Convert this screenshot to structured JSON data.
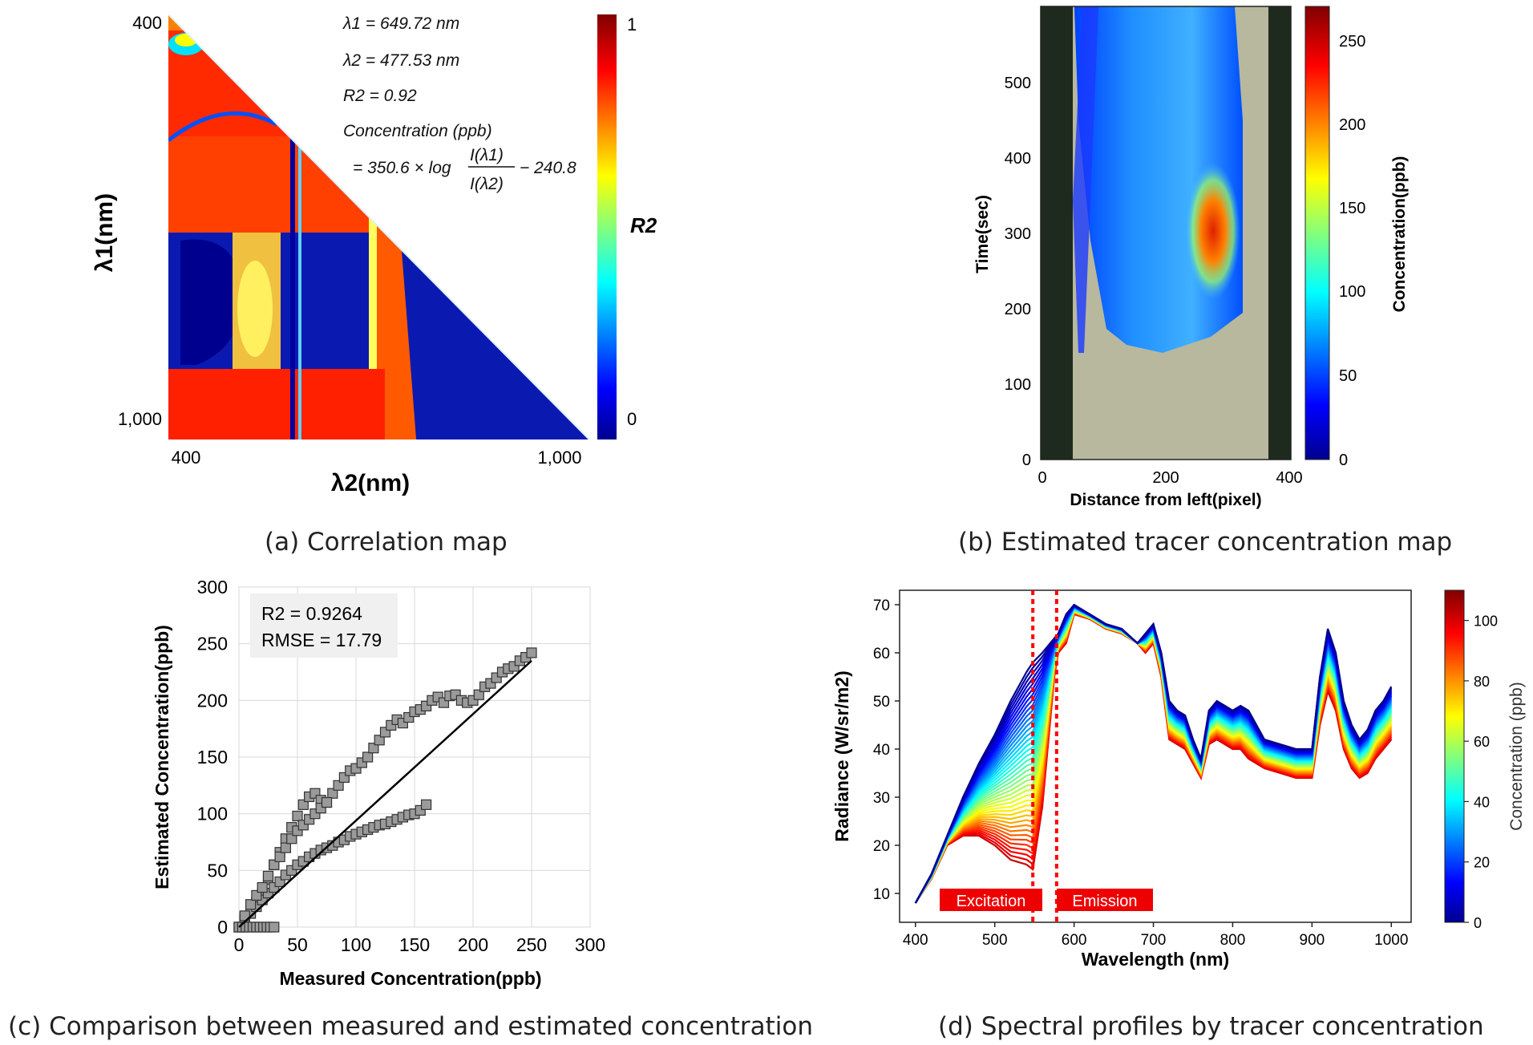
{
  "captions": {
    "a": "(a) Correlation map",
    "b": "(b) Estimated tracer concentration map",
    "c": "(c) Comparison between measured and estimated concentration",
    "d": "(d) Spectral profiles by tracer concentration"
  },
  "chart_data": [
    {
      "id": "a",
      "type": "heatmap",
      "xlabel": "λ2(nm)",
      "ylabel": "λ1(nm)",
      "x_ticks": [
        "400",
        "1,000"
      ],
      "y_ticks": [
        "400",
        "1,000"
      ],
      "xlim": [
        400,
        1000
      ],
      "ylim": [
        400,
        1000
      ],
      "colorbar": {
        "label": "R2",
        "ticks": [
          "1",
          "0"
        ],
        "range": [
          0,
          1
        ]
      },
      "annotations": {
        "lambda1": "λ1 = 649.72 nm",
        "lambda2": "λ2 = 477.53 nm",
        "r2": "R2 = 0.92",
        "eq_line1": "Concentration (ppb)",
        "eq_line2_prefix": "= 350.6 × log",
        "eq_num": "I(λ1)",
        "eq_den": "I(λ2)",
        "eq_suffix": "− 240.8"
      },
      "colors": [
        "#00008f",
        "#0000ff",
        "#00ffff",
        "#ffff00",
        "#ff0000",
        "#800000"
      ]
    },
    {
      "id": "b",
      "type": "heatmap",
      "xlabel": "Distance from left(pixel)",
      "ylabel": "Time(sec)",
      "x_ticks": [
        0,
        200,
        400
      ],
      "y_ticks": [
        0,
        100,
        200,
        300,
        400,
        500
      ],
      "xlim": [
        0,
        400
      ],
      "ylim": [
        0,
        600
      ],
      "colorbar": {
        "label": "Concentration(ppb)",
        "ticks": [
          0,
          50,
          100,
          150,
          200,
          250
        ],
        "range": [
          0,
          270
        ]
      }
    },
    {
      "id": "c",
      "type": "scatter",
      "xlabel": "Measured Concentration(ppb)",
      "ylabel": "Estimated Concentration(ppb)",
      "xlim": [
        0,
        300
      ],
      "ylim": [
        0,
        300
      ],
      "x_ticks": [
        0,
        50,
        100,
        150,
        200,
        250,
        300
      ],
      "y_ticks": [
        0,
        50,
        100,
        150,
        200,
        250,
        300
      ],
      "grid": true,
      "stats": {
        "r2": "R2 = 0.9264",
        "rmse": "RMSE = 17.79"
      },
      "fit_line": {
        "x": [
          0,
          250
        ],
        "y": [
          0,
          235
        ]
      },
      "series": [
        {
          "x": [
            0,
            5,
            10,
            15,
            20,
            25,
            30,
            35,
            40,
            45,
            50,
            55,
            60,
            65,
            70,
            75,
            80,
            85,
            90,
            95,
            100,
            105,
            110,
            115,
            120,
            125,
            130,
            135,
            140,
            145,
            150,
            155,
            160,
            165,
            170,
            175,
            180,
            185,
            190,
            195,
            200,
            205,
            210,
            215,
            220,
            225,
            230,
            235,
            240,
            245,
            250
          ],
          "y": [
            0,
            8,
            15,
            22,
            30,
            42,
            55,
            66,
            78,
            88,
            98,
            108,
            115,
            118,
            112,
            110,
            118,
            125,
            132,
            138,
            140,
            145,
            150,
            158,
            165,
            172,
            178,
            183,
            180,
            185,
            190,
            192,
            195,
            200,
            203,
            198,
            204,
            205,
            200,
            198,
            200,
            205,
            212,
            215,
            220,
            225,
            228,
            230,
            235,
            238,
            242
          ]
        },
        {
          "x": [
            0,
            5,
            10,
            15,
            20,
            25,
            30,
            35,
            40,
            45,
            50,
            55,
            60,
            65,
            70,
            75,
            80,
            85,
            90,
            95,
            100,
            105,
            110,
            115,
            120,
            125,
            130,
            135,
            140,
            145,
            150,
            155,
            160
          ],
          "y": [
            0,
            5,
            12,
            18,
            24,
            30,
            35,
            40,
            46,
            50,
            55,
            58,
            62,
            65,
            68,
            70,
            72,
            75,
            77,
            80,
            82,
            84,
            86,
            88,
            90,
            91,
            93,
            95,
            97,
            99,
            100,
            103,
            108
          ]
        },
        {
          "x": [
            0,
            3,
            6,
            9,
            12,
            15,
            18,
            21,
            24,
            27,
            30
          ],
          "y": [
            0,
            0,
            0,
            0,
            0,
            0,
            0,
            0,
            0,
            0,
            0
          ]
        },
        {
          "x": [
            5,
            10,
            15,
            20,
            25,
            30,
            35,
            40,
            45,
            50,
            55,
            60,
            65,
            70,
            75
          ],
          "y": [
            10,
            20,
            28,
            35,
            45,
            55,
            62,
            70,
            78,
            85,
            90,
            95,
            100,
            105,
            110
          ]
        }
      ]
    },
    {
      "id": "d",
      "type": "line",
      "xlabel": "Wavelength (nm)",
      "ylabel": "Radiance (W/sr/m2)",
      "xlim": [
        380,
        1025
      ],
      "ylim": [
        4,
        73
      ],
      "x_ticks": [
        400,
        500,
        600,
        700,
        800,
        900,
        1000
      ],
      "y_ticks": [
        10,
        20,
        30,
        40,
        50,
        60,
        70
      ],
      "excitation_label": "Excitation",
      "emission_label": "Emission",
      "excitation_cutoff": 548,
      "emission_cutoff": 578,
      "colorbar": {
        "label": "Concentration (ppb)",
        "ticks": [
          0,
          20,
          40,
          60,
          80,
          100
        ],
        "range": [
          0,
          110
        ]
      },
      "x": [
        400,
        420,
        440,
        460,
        480,
        500,
        520,
        540,
        548,
        560,
        575,
        580,
        590,
        600,
        620,
        640,
        660,
        680,
        690,
        700,
        710,
        720,
        730,
        740,
        750,
        760,
        770,
        780,
        790,
        800,
        810,
        820,
        840,
        860,
        880,
        900,
        910,
        920,
        930,
        940,
        950,
        960,
        970,
        980,
        990,
        1000
      ],
      "profile_low": [
        8,
        14,
        22,
        30,
        37,
        43,
        50,
        56,
        58,
        60,
        63,
        64,
        68,
        70,
        68,
        66,
        65,
        62,
        64,
        66,
        60,
        50,
        48,
        47,
        42,
        38,
        48,
        50,
        49,
        48,
        49,
        48,
        42,
        41,
        40,
        40,
        55,
        65,
        60,
        50,
        45,
        42,
        44,
        48,
        50,
        53
      ],
      "profile_high": [
        8,
        13,
        20,
        22,
        22,
        20,
        17,
        16,
        15,
        28,
        55,
        60,
        62,
        68,
        67,
        65,
        64,
        62,
        60,
        62,
        55,
        42,
        41,
        40,
        37,
        34,
        41,
        42,
        41,
        40,
        40,
        38,
        36,
        35,
        34,
        34,
        45,
        52,
        48,
        40,
        36,
        34,
        35,
        38,
        40,
        42
      ]
    }
  ]
}
